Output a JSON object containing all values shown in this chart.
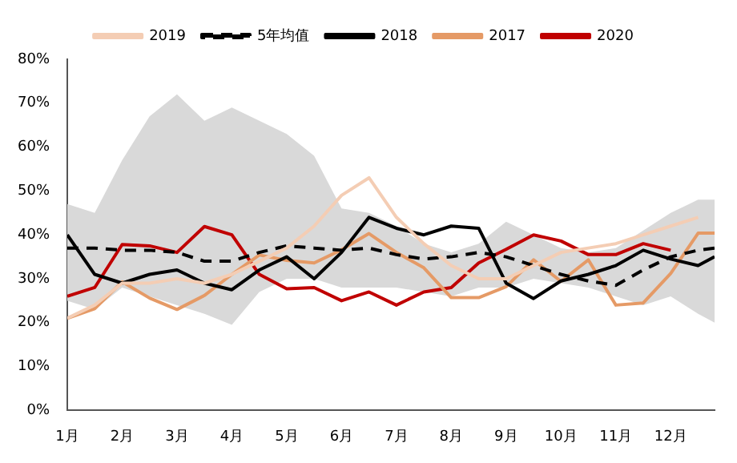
{
  "chart_data": {
    "type": "line",
    "x": [
      1,
      1.5,
      2,
      2.5,
      3,
      3.5,
      4,
      4.5,
      5,
      5.5,
      6,
      6.5,
      7,
      7.5,
      8,
      8.5,
      9,
      9.5,
      10,
      10.5,
      11,
      11.5,
      12,
      12.5,
      12.8
    ],
    "series": [
      {
        "name": "2019",
        "color": "#f4cdb4",
        "values": [
          21,
          24,
          29,
          29,
          30,
          29,
          31,
          34,
          37,
          42,
          49,
          53,
          44,
          38,
          33,
          30,
          30,
          33,
          36,
          37,
          38,
          40,
          42,
          44,
          null
        ]
      },
      {
        "name": "5年均值",
        "color": "#000000",
        "line_style": "dashed",
        "values": [
          37,
          37,
          36.5,
          36.5,
          36,
          34,
          34,
          36,
          37.5,
          37,
          36.5,
          37,
          35.5,
          34.5,
          35,
          36,
          35,
          33,
          31,
          29.5,
          28.5,
          32,
          35,
          36.5,
          37
        ],
        "lower": [
          25,
          23,
          28,
          26,
          24,
          22,
          19.5,
          27,
          30,
          30,
          28,
          28,
          28,
          27,
          26,
          28,
          28,
          30,
          29,
          28,
          26,
          24,
          26,
          22,
          20
        ],
        "upper": [
          47,
          45,
          57,
          67,
          72,
          66,
          69,
          66,
          63,
          58,
          46,
          45,
          42,
          38,
          36,
          38,
          43,
          40,
          37,
          36,
          37,
          41,
          45,
          48,
          48
        ]
      },
      {
        "name": "2018",
        "color": "#000000",
        "values": [
          40,
          31,
          29,
          31,
          32,
          29,
          27.5,
          32,
          35,
          30,
          36,
          44,
          41.5,
          40,
          42,
          41.5,
          29,
          25.5,
          29.5,
          31,
          33,
          36.5,
          34.5,
          33,
          35
        ]
      },
      {
        "name": "2017",
        "color": "#e59a66",
        "values": [
          21,
          23.2,
          29.3,
          25.6,
          23,
          26.2,
          31,
          35.4,
          34.2,
          33.6,
          36.6,
          40.3,
          36,
          32.5,
          25.7,
          25.7,
          28.2,
          34.3,
          29.4,
          34.3,
          24,
          24.5,
          31.2,
          40.4,
          40.4
        ]
      },
      {
        "name": "2020",
        "color": "#c00000",
        "values": [
          26,
          28,
          37.8,
          37.5,
          36,
          41.9,
          40,
          31,
          27.7,
          28,
          25,
          27,
          24,
          27,
          28,
          33.6,
          36.7,
          40,
          38.6,
          35.5,
          35.5,
          38,
          36.5,
          null,
          null
        ]
      }
    ],
    "xlim": [
      1,
      12.8
    ],
    "xticks": [
      {
        "value": 1,
        "label": "1月"
      },
      {
        "value": 2,
        "label": "2月"
      },
      {
        "value": 3,
        "label": "3月"
      },
      {
        "value": 4,
        "label": "4月"
      },
      {
        "value": 5,
        "label": "5月"
      },
      {
        "value": 6,
        "label": "6月"
      },
      {
        "value": 7,
        "label": "7月"
      },
      {
        "value": 8,
        "label": "8月"
      },
      {
        "value": 9,
        "label": "9月"
      },
      {
        "value": 10,
        "label": "10月"
      },
      {
        "value": 11,
        "label": "11月"
      },
      {
        "value": 12,
        "label": "12月"
      }
    ],
    "ylim": [
      0,
      80
    ],
    "yticks": [
      {
        "value": 0,
        "label": "0%"
      },
      {
        "value": 10,
        "label": "10%"
      },
      {
        "value": 20,
        "label": "20%"
      },
      {
        "value": 30,
        "label": "30%"
      },
      {
        "value": 40,
        "label": "40%"
      },
      {
        "value": 50,
        "label": "50%"
      },
      {
        "value": 60,
        "label": "60%"
      },
      {
        "value": 70,
        "label": "70%"
      },
      {
        "value": 80,
        "label": "80%"
      }
    ],
    "grid": false,
    "legend": "top",
    "marker": "none"
  }
}
